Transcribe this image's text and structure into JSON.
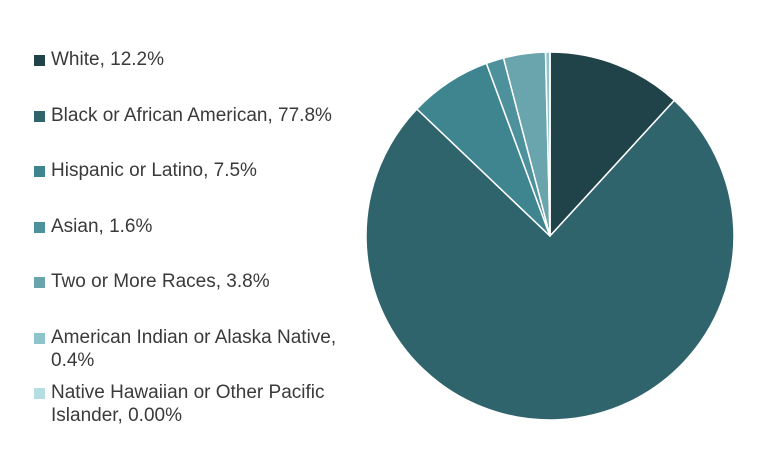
{
  "chart_data": {
    "type": "pie",
    "title": "",
    "legend_position": "left",
    "slices": [
      {
        "label": "White, 12.2%",
        "value": 12.2,
        "color": "#20434a"
      },
      {
        "label": "Black or African American, 77.8%",
        "value": 77.8,
        "color": "#2f646c"
      },
      {
        "label": "Hispanic or Latino, 7.5%",
        "value": 7.5,
        "color": "#3e8590"
      },
      {
        "label": "Asian, 1.6%",
        "value": 1.6,
        "color": "#4c919c"
      },
      {
        "label": "Two or More Races, 3.8%",
        "value": 3.8,
        "color": "#6aa4ad"
      },
      {
        "label": "American Indian or Alaska Native, 0.4%",
        "value": 0.4,
        "color": "#8ec5cd"
      },
      {
        "label": "Native Hawaiian or Other Pacific Islander, 0.00%",
        "value": 0.0,
        "color": "#b5dde2"
      }
    ]
  }
}
